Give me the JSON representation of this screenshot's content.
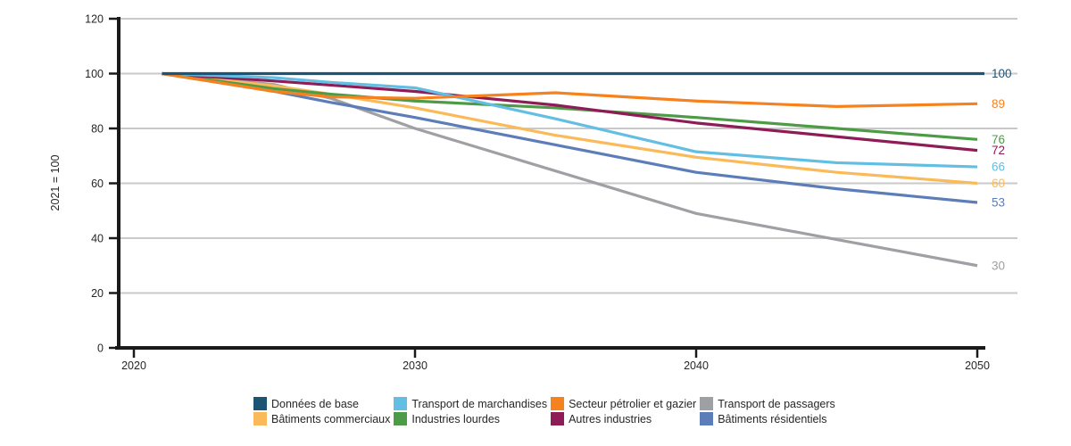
{
  "chart_data": {
    "type": "line",
    "title": "",
    "xlabel": "",
    "ylabel": "2021 = 100",
    "ylim": [
      0,
      120
    ],
    "xlim": [
      2020,
      2051.5
    ],
    "grid": "horizontal",
    "legend_position": "bottom",
    "x": [
      2021,
      2025,
      2027,
      2030,
      2035,
      2040,
      2045,
      2050
    ],
    "x_ticks": [
      "2020",
      "2030",
      "2040",
      "2050"
    ],
    "y_ticks": [
      0,
      20,
      40,
      60,
      80,
      100,
      120
    ],
    "series": [
      {
        "id": "donnees-de-base",
        "label": "Données de base",
        "color": "#1D5373",
        "end_label": "100",
        "values": [
          100,
          100,
          100,
          100,
          100,
          100,
          100,
          100
        ]
      },
      {
        "id": "batiments-commerciaux",
        "label": "Bâtiments commerciaux",
        "color": "#FBBA59",
        "end_label": "60",
        "values": [
          100,
          95.5,
          92.5,
          87.5,
          77.5,
          69.5,
          64,
          60
        ]
      },
      {
        "id": "transport-de-marchandises",
        "label": "Transport de marchandises",
        "color": "#63BEE4",
        "end_label": "66",
        "values": [
          100,
          98.5,
          96.8,
          94.8,
          83.5,
          71.5,
          67.5,
          66
        ]
      },
      {
        "id": "industries-lourdes",
        "label": "Industries lourdes",
        "color": "#4E9B47",
        "end_label": "76",
        "values": [
          100,
          94.5,
          92.5,
          90,
          87.5,
          84,
          80,
          76
        ]
      },
      {
        "id": "secteur-petrolier-et-gazier",
        "label": "Secteur pétrolier et gazier",
        "color": "#F6821F",
        "end_label": "89",
        "values": [
          100,
          93.5,
          91.5,
          91,
          93,
          90,
          88,
          89
        ]
      },
      {
        "id": "autres-industries",
        "label": "Autres industries",
        "color": "#8E1C56",
        "end_label": "72",
        "values": [
          100,
          97.3,
          95.8,
          93.5,
          88.5,
          82,
          77,
          72
        ]
      },
      {
        "id": "transport-de-passagers",
        "label": "Transport de passagers",
        "color": "#9EA0A3",
        "end_label": "30",
        "values": [
          100,
          96,
          91,
          80,
          64.5,
          49,
          39.5,
          30
        ]
      },
      {
        "id": "batiments-residentiels",
        "label": "Bâtiments résidentiels",
        "color": "#5C7DB8",
        "end_label": "53",
        "values": [
          100,
          93.5,
          89.5,
          84,
          74,
          64,
          58,
          53
        ]
      }
    ],
    "legend_columns": [
      [
        "donnees-de-base",
        "batiments-commerciaux"
      ],
      [
        "transport-de-marchandises",
        "industries-lourdes"
      ],
      [
        "secteur-petrolier-et-gazier",
        "autres-industries"
      ],
      [
        "transport-de-passagers",
        "batiments-residentiels"
      ]
    ],
    "draw_order": [
      "transport-de-passagers",
      "batiments-residentiels",
      "batiments-commerciaux",
      "industries-lourdes",
      "autres-industries",
      "transport-de-marchandises",
      "secteur-petrolier-et-gazier",
      "donnees-de-base"
    ]
  },
  "style": {
    "grid_color": "#C9C9C9",
    "axis_color": "#1A1A1A",
    "tick_label_color": "#262626",
    "background": "#FFFFFF"
  }
}
